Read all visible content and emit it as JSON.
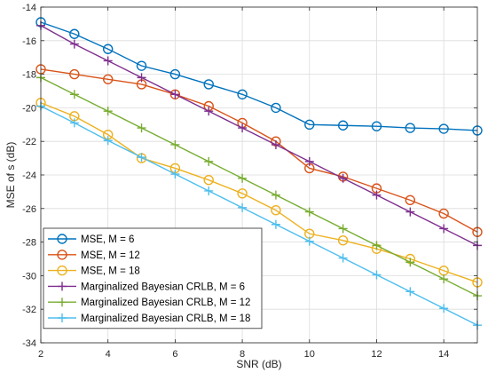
{
  "chart_data": {
    "type": "line",
    "title": "",
    "xlabel": "SNR (dB)",
    "ylabel": "MSE of s (dB)",
    "xlim": [
      2,
      15
    ],
    "ylim": [
      -34,
      -14
    ],
    "xticks": [
      2,
      4,
      6,
      8,
      10,
      12,
      14
    ],
    "yticks": [
      -34,
      -32,
      -30,
      -28,
      -26,
      -24,
      -22,
      -20,
      -18,
      -16,
      -14
    ],
    "grid": true,
    "legend_position": "bottom-left",
    "x": [
      2,
      3,
      4,
      5,
      6,
      7,
      8,
      9,
      10,
      11,
      12,
      13,
      14,
      15
    ],
    "series": [
      {
        "name": "MSE, M = 6",
        "marker": "circle",
        "color": "#0072BD",
        "values": [
          -14.9,
          -15.6,
          -16.5,
          -17.5,
          -18.0,
          -18.6,
          -19.2,
          -20.0,
          -21.0,
          -21.05,
          -21.1,
          -21.2,
          -21.25,
          -21.35
        ]
      },
      {
        "name": "MSE, M = 12",
        "marker": "circle",
        "color": "#D95319",
        "values": [
          -17.7,
          -18.0,
          -18.3,
          -18.6,
          -19.2,
          -19.9,
          -20.9,
          -22.0,
          -23.6,
          -24.1,
          -24.8,
          -25.5,
          -26.3,
          -27.4
        ]
      },
      {
        "name": "MSE, M = 18",
        "marker": "circle",
        "color": "#EDB120",
        "values": [
          -19.7,
          -20.5,
          -21.6,
          -23.0,
          -23.6,
          -24.3,
          -25.1,
          -26.1,
          -27.5,
          -27.9,
          -28.4,
          -29.0,
          -29.7,
          -30.4
        ]
      },
      {
        "name": "Marginalized Bayesian CRLB, M = 6",
        "marker": "plus",
        "color": "#7E2F8E",
        "values": [
          -15.1,
          -16.2,
          -17.2,
          -18.2,
          -19.2,
          -20.2,
          -21.2,
          -22.2,
          -23.2,
          -24.2,
          -25.2,
          -26.2,
          -27.2,
          -28.2
        ]
      },
      {
        "name": "Marginalized Bayesian CRLB, M = 12",
        "marker": "plus",
        "color": "#77AC30",
        "values": [
          -18.2,
          -19.2,
          -20.2,
          -21.2,
          -22.2,
          -23.2,
          -24.2,
          -25.2,
          -26.2,
          -27.2,
          -28.2,
          -29.2,
          -30.2,
          -31.2
        ]
      },
      {
        "name": "Marginalized Bayesian CRLB, M = 18",
        "marker": "plus",
        "color": "#4DBEEE",
        "values": [
          -19.9,
          -20.9,
          -21.95,
          -22.95,
          -23.95,
          -24.95,
          -25.95,
          -26.95,
          -27.95,
          -28.95,
          -29.95,
          -30.95,
          -31.95,
          -32.95
        ]
      }
    ]
  }
}
